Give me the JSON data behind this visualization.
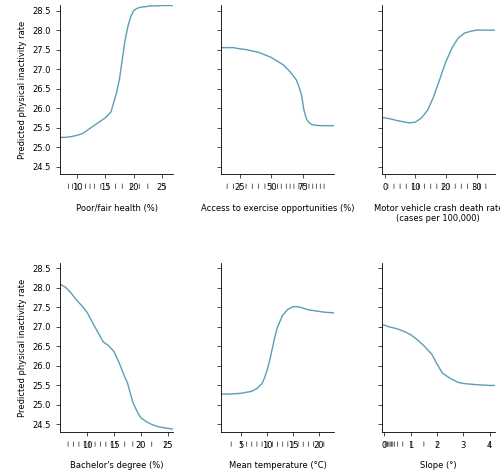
{
  "line_color": "#5b9eb8",
  "line_width": 1.0,
  "background_color": "#ffffff",
  "plots": [
    {
      "xlabel": "Poor/fair health (%)",
      "xlim": [
        7,
        27
      ],
      "ylim": [
        24.3,
        28.65
      ],
      "yticks": [
        24.5,
        25.0,
        25.5,
        26.0,
        26.5,
        27.0,
        27.5,
        28.0,
        28.5
      ],
      "xticks": [
        10,
        15,
        20,
        25
      ],
      "rug_x": [
        8.5,
        9.2,
        10.0,
        10.8,
        11.5,
        12.3,
        13.1,
        14.2,
        15.5,
        16.8,
        18.0,
        19.5,
        21.0,
        22.5,
        25.5
      ],
      "curve_x": [
        7,
        8,
        9,
        10,
        11,
        12,
        13,
        14,
        15,
        16,
        17,
        17.5,
        18,
        18.5,
        19,
        19.5,
        20,
        20.5,
        21,
        22,
        23,
        24,
        25,
        26,
        27
      ],
      "curve_y": [
        25.25,
        25.25,
        25.27,
        25.3,
        25.35,
        25.45,
        25.55,
        25.65,
        25.75,
        25.9,
        26.4,
        26.75,
        27.25,
        27.75,
        28.1,
        28.35,
        28.5,
        28.55,
        28.58,
        28.6,
        28.62,
        28.62,
        28.63,
        28.63,
        28.63
      ]
    },
    {
      "xlabel": "Access to exercise opportunities (%)",
      "xlim": [
        10,
        100
      ],
      "ylim": [
        24.3,
        28.65
      ],
      "yticks": [
        24.5,
        25.0,
        25.5,
        26.0,
        26.5,
        27.0,
        27.5,
        28.0,
        28.5
      ],
      "xticks": [
        25,
        50,
        75
      ],
      "rug_x": [
        15,
        20,
        25,
        30,
        35,
        40,
        45,
        50,
        55,
        58,
        62,
        65,
        68,
        72,
        75,
        78,
        80,
        83,
        86,
        89,
        92
      ],
      "curve_x": [
        10,
        15,
        20,
        25,
        30,
        40,
        50,
        60,
        65,
        70,
        72,
        74,
        76,
        78,
        80,
        82,
        85,
        90,
        95,
        100
      ],
      "curve_y": [
        27.55,
        27.55,
        27.55,
        27.52,
        27.5,
        27.43,
        27.3,
        27.1,
        26.93,
        26.72,
        26.55,
        26.35,
        25.95,
        25.72,
        25.63,
        25.58,
        25.56,
        25.55,
        25.55,
        25.55
      ]
    },
    {
      "xlabel": "Motor vehicle crash death rate\n(cases per 100,000)",
      "xlim": [
        -1,
        36
      ],
      "ylim": [
        24.3,
        28.65
      ],
      "yticks": [
        24.5,
        25.0,
        25.5,
        26.0,
        26.5,
        27.0,
        27.5,
        28.0,
        28.5
      ],
      "xticks": [
        0,
        10,
        20,
        30
      ],
      "rug_x": [
        1,
        3,
        5,
        7,
        9,
        11,
        13,
        15,
        17,
        19,
        21,
        23,
        25,
        27,
        29,
        31,
        33
      ],
      "curve_x": [
        -1,
        0,
        2,
        4,
        6,
        8,
        10,
        12,
        14,
        16,
        18,
        20,
        22,
        24,
        26,
        28,
        30,
        32,
        34,
        36
      ],
      "curve_y": [
        25.75,
        25.75,
        25.72,
        25.68,
        25.65,
        25.62,
        25.64,
        25.75,
        25.95,
        26.3,
        26.75,
        27.2,
        27.55,
        27.8,
        27.92,
        27.97,
        28.0,
        28.0,
        28.0,
        28.0
      ]
    },
    {
      "xlabel": "Bachelor's degree (%)",
      "xlim": [
        5,
        26
      ],
      "ylim": [
        24.3,
        28.65
      ],
      "yticks": [
        24.5,
        25.0,
        25.5,
        26.0,
        26.5,
        27.0,
        27.5,
        28.0,
        28.5
      ],
      "xticks": [
        10,
        15,
        20,
        25
      ],
      "rug_x": [
        6.5,
        7.5,
        8.5,
        9.5,
        10.5,
        11.5,
        12.5,
        13.5,
        14.5,
        15.5,
        17.0,
        18.5,
        20.0,
        22.0,
        24.5
      ],
      "curve_x": [
        5,
        6,
        7,
        8,
        9,
        10,
        11,
        12,
        13,
        14,
        15,
        16,
        17,
        17.5,
        18,
        18.5,
        19,
        19.5,
        20,
        21,
        22,
        23,
        24,
        25,
        26
      ],
      "curve_y": [
        28.1,
        28.02,
        27.88,
        27.7,
        27.55,
        27.38,
        27.12,
        26.87,
        26.62,
        26.52,
        26.37,
        26.07,
        25.72,
        25.57,
        25.32,
        25.07,
        24.92,
        24.78,
        24.67,
        24.57,
        24.5,
        24.45,
        24.42,
        24.4,
        24.38
      ]
    },
    {
      "xlabel": "Mean temperature (°C)",
      "xlim": [
        1,
        23
      ],
      "ylim": [
        24.3,
        28.65
      ],
      "yticks": [
        24.5,
        25.0,
        25.5,
        26.0,
        26.5,
        27.0,
        27.5,
        28.0,
        28.5
      ],
      "xticks": [
        5,
        10,
        15,
        20
      ],
      "rug_x": [
        3,
        5,
        6,
        7,
        8,
        9,
        10,
        11,
        12,
        13,
        14,
        15,
        16,
        17,
        18,
        19,
        20,
        21
      ],
      "curve_x": [
        1,
        3,
        5,
        7,
        8,
        9,
        9.5,
        10,
        10.5,
        11,
        11.5,
        12,
        13,
        14,
        15,
        16,
        17,
        18,
        19,
        20,
        21,
        22,
        23
      ],
      "curve_y": [
        25.28,
        25.28,
        25.3,
        25.35,
        25.42,
        25.55,
        25.7,
        25.9,
        26.15,
        26.45,
        26.75,
        27.0,
        27.3,
        27.45,
        27.52,
        27.52,
        27.48,
        27.44,
        27.42,
        27.4,
        27.38,
        27.37,
        27.36
      ]
    },
    {
      "xlabel": "Slope (°)",
      "xlim": [
        -0.1,
        4.2
      ],
      "ylim": [
        24.3,
        28.65
      ],
      "yticks": [
        24.5,
        25.0,
        25.5,
        26.0,
        26.5,
        27.0,
        27.5,
        28.0,
        28.5
      ],
      "xticks": [
        0,
        1,
        2,
        3,
        4
      ],
      "rug_x": [
        0.03,
        0.07,
        0.12,
        0.17,
        0.22,
        0.27,
        0.32,
        0.38,
        0.5,
        0.7,
        1.0,
        1.5,
        2.0,
        4.0
      ],
      "curve_x": [
        -0.1,
        0,
        0.1,
        0.2,
        0.5,
        0.8,
        1.0,
        1.2,
        1.5,
        1.8,
        2.0,
        2.2,
        2.5,
        2.8,
        3.0,
        3.5,
        4.0,
        4.2
      ],
      "curve_y": [
        27.05,
        27.05,
        27.02,
        27.0,
        26.95,
        26.87,
        26.8,
        26.7,
        26.52,
        26.3,
        26.05,
        25.82,
        25.68,
        25.58,
        25.55,
        25.52,
        25.5,
        25.5
      ]
    }
  ],
  "ylabel": "Predicted physical inactivity rate",
  "fig_width": 5.0,
  "fig_height": 4.75
}
